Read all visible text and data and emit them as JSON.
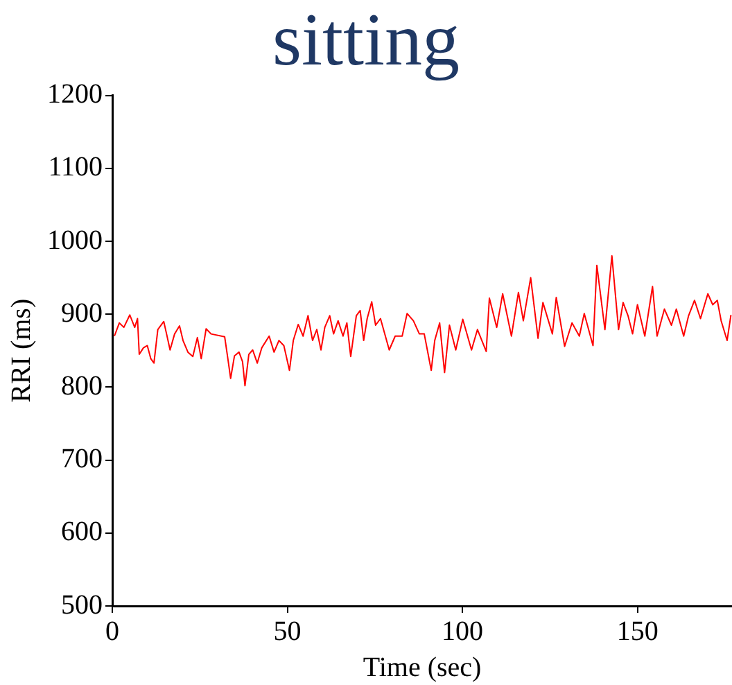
{
  "chart_data": {
    "type": "line",
    "title": "sitting",
    "xlabel": "Time (sec)",
    "ylabel": "RRI (ms)",
    "xlim": [
      0,
      177
    ],
    "xticks": [
      0,
      50,
      100,
      150
    ],
    "ylim": [
      500,
      1200
    ],
    "yticks": [
      500,
      600,
      700,
      800,
      900,
      1000,
      1100,
      1200
    ],
    "grid": false,
    "legend": false,
    "marker": "none",
    "line_style": "solid",
    "series": [
      {
        "color": "#ff0000",
        "x": [
          0.6,
          2.0,
          3.3,
          5,
          6.4,
          7.2,
          7.7,
          8.9,
          10,
          11,
          11.9,
          13,
          14.7,
          15.5,
          16.5,
          17.8,
          19.2,
          20.2,
          21.6,
          23,
          24.3,
          25.4,
          26.8,
          28.2,
          32.1,
          33.1,
          33.8,
          34.9,
          36.2,
          37.2,
          37.9,
          39,
          40.1,
          41.4,
          42.7,
          44.8,
          46.2,
          47.6,
          49,
          50.6,
          51.7,
          53.1,
          54.5,
          55.9,
          57.2,
          58.4,
          59.6,
          60.7,
          62.1,
          63.2,
          64.5,
          65.9,
          67,
          68.1,
          69.7,
          70.8,
          71.8,
          72.8,
          74.1,
          75.2,
          76.6,
          79.1,
          80.8,
          82.8,
          84.2,
          86,
          87.7,
          89.1,
          91.1,
          92.1,
          93.5,
          94.9,
          96.3,
          98.1,
          100.1,
          102.6,
          104.3,
          106.8,
          107.7,
          109.8,
          111.5,
          114,
          116,
          117.4,
          119.5,
          121.6,
          123,
          125.7,
          126.8,
          129.2,
          131.3,
          133.4,
          134.8,
          137.3,
          138.4,
          140.7,
          142.7,
          144.6,
          145.9,
          147.3,
          148.6,
          150,
          152.1,
          154.3,
          155.6,
          157.7,
          159.7,
          161.1,
          163.2,
          164.6,
          166.3,
          168,
          170.1,
          171.5,
          172.8,
          173.9,
          175.6,
          176.7
        ],
        "values": [
          870,
          888,
          882,
          899,
          882,
          894,
          845,
          854,
          857,
          839,
          833,
          879,
          890,
          873,
          851,
          873,
          884,
          864,
          848,
          842,
          868,
          839,
          880,
          873,
          869,
          836,
          812,
          843,
          848,
          835,
          802,
          845,
          851,
          833,
          854,
          870,
          848,
          864,
          857,
          823,
          864,
          886,
          870,
          898,
          864,
          879,
          851,
          882,
          898,
          873,
          891,
          870,
          888,
          842,
          898,
          905,
          864,
          894,
          917,
          885,
          894,
          851,
          870,
          870,
          901,
          891,
          873,
          873,
          823,
          864,
          888,
          820,
          885,
          851,
          893,
          851,
          879,
          849,
          922,
          882,
          928,
          870,
          930,
          891,
          950,
          867,
          916,
          873,
          923,
          856,
          888,
          870,
          901,
          857,
          967,
          879,
          980,
          879,
          916,
          898,
          873,
          913,
          870,
          938,
          870,
          907,
          885,
          907,
          870,
          898,
          919,
          894,
          928,
          913,
          919,
          891,
          864,
          899
        ]
      }
    ]
  }
}
